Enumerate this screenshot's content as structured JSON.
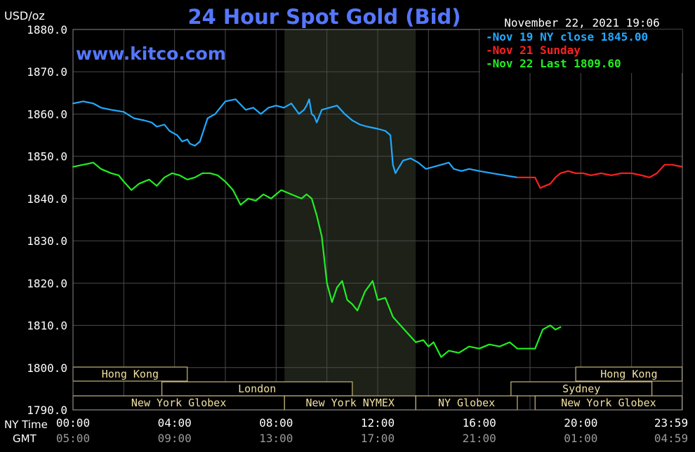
{
  "chart_data": {
    "type": "line",
    "title": "24 Hour Spot Gold (Bid)",
    "unit_label": "USD/oz",
    "watermark": "www.kitco.com",
    "timestamp": "November 22, 2021 19:06",
    "ylim": [
      1790,
      1880
    ],
    "y_ticks": [
      "1880.0",
      "1870.0",
      "1860.0",
      "1850.0",
      "1840.0",
      "1830.0",
      "1820.0",
      "1810.0",
      "1800.0",
      "1790.0"
    ],
    "x_range_hours": [
      0,
      24
    ],
    "x_row_labels": {
      "ny": "NY Time",
      "gmt": "GMT"
    },
    "x_ticks_ny": [
      "00:00",
      "04:00",
      "08:00",
      "12:00",
      "16:00",
      "20:00",
      "23:59"
    ],
    "x_ticks_gmt": [
      "05:00",
      "09:00",
      "13:00",
      "17:00",
      "21:00",
      "01:00",
      "04:59"
    ],
    "shaded_session_hours": [
      8.33,
      13.5
    ],
    "legend": [
      {
        "label": "Nov 19 NY close 1845.00",
        "color": "#22aaff"
      },
      {
        "label": "Nov 21 Sunday",
        "color": "#ff2020"
      },
      {
        "label": "Nov 22 Last 1809.60",
        "color": "#22ee22"
      }
    ],
    "sessions": [
      {
        "label": "Hong Kong",
        "row": 0,
        "start": 0,
        "end": 4.5
      },
      {
        "label": "Hong Kong",
        "row": 0,
        "start": 19.8,
        "end": 23.99
      },
      {
        "label": "London",
        "row": 1,
        "start": 3.5,
        "end": 11
      },
      {
        "label": "Sydney",
        "row": 1,
        "start": 17.25,
        "end": 22.8
      },
      {
        "label": "New York Globex",
        "row": 2,
        "start": 0,
        "end": 8.33
      },
      {
        "label": "New York NYMEX",
        "row": 2,
        "start": 8.33,
        "end": 13.5
      },
      {
        "label": "NY Globex",
        "row": 2,
        "start": 13.5,
        "end": 17.5
      },
      {
        "label": "New York Globex",
        "row": 2,
        "start": 18.2,
        "end": 23.99
      }
    ],
    "series": [
      {
        "name": "Nov 19 NY close 1845.00",
        "color": "#22aaff",
        "x": [
          0,
          0.4,
          0.8,
          1.1,
          1.5,
          2,
          2.4,
          2.8,
          3.1,
          3.3,
          3.6,
          3.8,
          4.1,
          4.3,
          4.5,
          4.6,
          4.8,
          5,
          5.3,
          5.6,
          6,
          6.4,
          6.8,
          7.1,
          7.4,
          7.7,
          8,
          8.3,
          8.6,
          8.9,
          9.1,
          9.2,
          9.3,
          9.4,
          9.5,
          9.6,
          9.8,
          10.1,
          10.4,
          10.7,
          11,
          11.3,
          11.6,
          12,
          12.3,
          12.5,
          12.6,
          12.7,
          12.8,
          13,
          13.3,
          13.6,
          13.9,
          14.2,
          14.5,
          14.8,
          15,
          15.3,
          15.6,
          16,
          16.5,
          17,
          17.5
        ],
        "y": [
          1862.5,
          1863,
          1862.5,
          1861.5,
          1861,
          1860.5,
          1859,
          1858.5,
          1858,
          1857,
          1857.5,
          1856,
          1855,
          1853.5,
          1854,
          1853,
          1852.5,
          1853.5,
          1859,
          1860,
          1863,
          1863.5,
          1861,
          1861.5,
          1860,
          1861.5,
          1862,
          1861.5,
          1862.5,
          1860,
          1861,
          1862,
          1863.5,
          1860,
          1859.5,
          1858,
          1861,
          1861.5,
          1862,
          1860,
          1858.5,
          1857.5,
          1857,
          1856.5,
          1856,
          1855,
          1848,
          1846,
          1847,
          1849,
          1849.5,
          1848.5,
          1847,
          1847.5,
          1848,
          1848.5,
          1847,
          1846.5,
          1847,
          1846.5,
          1846,
          1845.5,
          1845
        ]
      },
      {
        "name": "Nov 21 Sunday",
        "color": "#ff2020",
        "x": [
          17.5,
          18,
          18.2,
          18.4,
          18.6,
          18.8,
          19,
          19.2,
          19.5,
          19.8,
          20.1,
          20.4,
          20.8,
          21.2,
          21.6,
          22,
          22.4,
          22.7,
          23,
          23.3,
          23.6,
          23.99
        ],
        "y": [
          1845,
          1845,
          1845,
          1842.5,
          1843,
          1843.5,
          1845,
          1846,
          1846.5,
          1846,
          1846,
          1845.5,
          1846,
          1845.5,
          1846,
          1846,
          1845.5,
          1845,
          1846,
          1848,
          1848,
          1847.5
        ]
      },
      {
        "name": "Nov 22 Last 1809.60",
        "color": "#22ee22",
        "x": [
          0,
          0.4,
          0.8,
          1.1,
          1.5,
          1.8,
          2,
          2.3,
          2.6,
          3,
          3.3,
          3.6,
          3.9,
          4.2,
          4.5,
          4.8,
          5.1,
          5.4,
          5.7,
          6,
          6.3,
          6.6,
          6.9,
          7.2,
          7.5,
          7.8,
          8,
          8.2,
          8.4,
          8.6,
          8.8,
          9,
          9.2,
          9.4,
          9.6,
          9.8,
          10,
          10.2,
          10.4,
          10.6,
          10.8,
          11,
          11.2,
          11.5,
          11.8,
          12,
          12.3,
          12.6,
          12.9,
          13.2,
          13.5,
          13.8,
          14,
          14.2,
          14.5,
          14.8,
          15.2,
          15.6,
          16,
          16.4,
          16.8,
          17.2,
          17.5,
          18,
          18.2,
          18.5,
          18.8,
          19,
          19.2
        ],
        "y": [
          1847.5,
          1848,
          1848.5,
          1847,
          1846,
          1845.5,
          1844,
          1842,
          1843.5,
          1844.5,
          1843,
          1845,
          1846,
          1845.5,
          1844.5,
          1845,
          1846,
          1846,
          1845.5,
          1844,
          1842,
          1838.5,
          1840,
          1839.5,
          1841,
          1840,
          1841,
          1842,
          1841.5,
          1841,
          1840.5,
          1840,
          1841,
          1840,
          1836,
          1831,
          1820,
          1815.5,
          1819,
          1820.5,
          1816,
          1815,
          1813.5,
          1818,
          1820.5,
          1816,
          1816.5,
          1812,
          1810,
          1808,
          1806,
          1806.5,
          1805,
          1806,
          1802.5,
          1804,
          1803.5,
          1805,
          1804.5,
          1805.5,
          1805,
          1806,
          1804.5,
          1804.5,
          1804.5,
          1809,
          1810,
          1809,
          1809.6
        ]
      }
    ]
  }
}
